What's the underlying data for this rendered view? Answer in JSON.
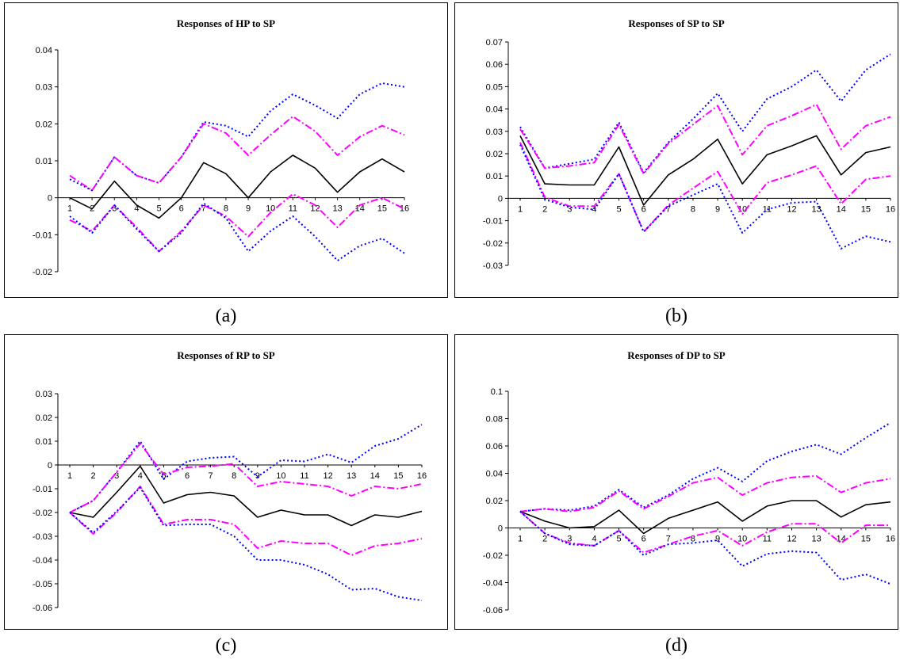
{
  "colors": {
    "irf": "#000000",
    "band_inner": "#ff00ff",
    "band_outer": "#0000ff",
    "axis": "#000000",
    "frame": "#000000"
  },
  "chart_data": [
    {
      "type": "line",
      "title": "Responses of HP to SP",
      "caption": "(a)",
      "x": [
        1,
        2,
        3,
        4,
        5,
        6,
        7,
        8,
        9,
        10,
        11,
        12,
        13,
        14,
        15,
        16
      ],
      "ylim": [
        -0.02,
        0.04
      ],
      "yticks": [
        "0.04",
        "0.03",
        "0.02",
        "0.01",
        "0",
        "-0.01",
        "-0.02"
      ],
      "ytick_values": [
        0.04,
        0.03,
        0.02,
        0.01,
        0,
        -0.01,
        -0.02
      ],
      "grid": false,
      "legend": "none",
      "series": [
        {
          "role": "outer_upper",
          "values": [
            0.005,
            0.002,
            0.011,
            0.006,
            0.004,
            0.011,
            0.0205,
            0.0195,
            0.0165,
            0.0235,
            0.028,
            0.025,
            0.0215,
            0.028,
            0.031,
            0.03
          ]
        },
        {
          "role": "inner_upper",
          "values": [
            0.006,
            0.002,
            0.011,
            0.006,
            0.004,
            0.011,
            0.02,
            0.0175,
            0.0115,
            0.017,
            0.022,
            0.018,
            0.0115,
            0.0165,
            0.0195,
            0.017
          ]
        },
        {
          "role": "irf",
          "values": [
            0.0,
            -0.003,
            0.0045,
            -0.002,
            -0.0055,
            0.0,
            0.0095,
            0.0065,
            0.0,
            0.007,
            0.0115,
            0.008,
            0.0015,
            0.007,
            0.0105,
            0.007
          ]
        },
        {
          "role": "inner_lower",
          "values": [
            -0.006,
            -0.009,
            -0.002,
            -0.008,
            -0.0145,
            -0.009,
            -0.002,
            -0.005,
            -0.0105,
            -0.004,
            0.001,
            -0.002,
            -0.008,
            -0.002,
            0.0,
            -0.003
          ]
        },
        {
          "role": "outer_lower",
          "values": [
            -0.005,
            -0.0095,
            -0.002,
            -0.0085,
            -0.0145,
            -0.0095,
            -0.0015,
            -0.0055,
            -0.0145,
            -0.009,
            -0.005,
            -0.0105,
            -0.017,
            -0.013,
            -0.011,
            -0.015
          ]
        }
      ]
    },
    {
      "type": "line",
      "title": "Responses of SP to SP",
      "caption": "(b)",
      "x": [
        1,
        2,
        3,
        4,
        5,
        6,
        7,
        8,
        9,
        10,
        11,
        12,
        13,
        14,
        15,
        16
      ],
      "ylim": [
        -0.03,
        0.07
      ],
      "yticks": [
        "0.07",
        "0.06",
        "0.05",
        "0.04",
        "0.03",
        "0.02",
        "0.01",
        "0",
        "-0.01",
        "-0.02",
        "-0.03"
      ],
      "ytick_values": [
        0.07,
        0.06,
        0.05,
        0.04,
        0.03,
        0.02,
        0.01,
        0,
        -0.01,
        -0.02,
        -0.03
      ],
      "grid": false,
      "legend": "none",
      "series": [
        {
          "role": "outer_upper",
          "values": [
            0.032,
            0.0135,
            0.0155,
            0.0175,
            0.034,
            0.0115,
            0.025,
            0.0355,
            0.047,
            0.03,
            0.0445,
            0.05,
            0.0575,
            0.0435,
            0.0575,
            0.0645
          ]
        },
        {
          "role": "inner_upper",
          "values": [
            0.031,
            0.0135,
            0.0145,
            0.016,
            0.033,
            0.011,
            0.0245,
            0.033,
            0.0415,
            0.0195,
            0.0325,
            0.037,
            0.042,
            0.022,
            0.0325,
            0.0365
          ]
        },
        {
          "role": "irf",
          "values": [
            0.028,
            0.0065,
            0.006,
            0.006,
            0.023,
            -0.003,
            0.0105,
            0.0175,
            0.0265,
            0.0065,
            0.0195,
            0.0235,
            0.028,
            0.0105,
            0.0205,
            0.023
          ]
        },
        {
          "role": "inner_lower",
          "values": [
            0.025,
            0.0005,
            -0.0035,
            -0.0035,
            0.011,
            -0.015,
            -0.003,
            0.0045,
            0.012,
            -0.007,
            0.007,
            0.0105,
            0.0145,
            -0.0025,
            0.0085,
            0.01
          ]
        },
        {
          "role": "outer_lower",
          "values": [
            0.024,
            -0.0005,
            -0.004,
            -0.005,
            0.011,
            -0.015,
            -0.0035,
            0.0015,
            0.0065,
            -0.0155,
            -0.005,
            -0.002,
            -0.0015,
            -0.0225,
            -0.017,
            -0.0195
          ]
        }
      ]
    },
    {
      "type": "line",
      "title": "Responses of RP to SP",
      "caption": "(c)",
      "x": [
        1,
        2,
        3,
        4,
        5,
        6,
        7,
        8,
        9,
        10,
        11,
        12,
        13,
        14,
        15,
        16
      ],
      "ylim": [
        -0.06,
        0.03
      ],
      "yticks": [
        "0.03",
        "0.02",
        "0.01",
        "0",
        "-0.01",
        "-0.02",
        "-0.03",
        "-0.04",
        "-0.05",
        "-0.06"
      ],
      "ytick_values": [
        0.03,
        0.02,
        0.01,
        0,
        -0.01,
        -0.02,
        -0.03,
        -0.04,
        -0.05,
        -0.06
      ],
      "grid": false,
      "legend": "none",
      "series": [
        {
          "role": "outer_upper",
          "values": [
            -0.02,
            -0.015,
            -0.003,
            0.01,
            -0.006,
            0.0015,
            0.003,
            0.0035,
            -0.005,
            0.002,
            0.0015,
            0.0045,
            0.001,
            0.008,
            0.011,
            0.017
          ]
        },
        {
          "role": "inner_upper",
          "values": [
            -0.02,
            -0.015,
            -0.003,
            0.009,
            -0.004,
            -0.001,
            -0.0005,
            0.0005,
            -0.009,
            -0.007,
            -0.008,
            -0.009,
            -0.013,
            -0.009,
            -0.01,
            -0.008
          ]
        },
        {
          "role": "irf",
          "values": [
            -0.02,
            -0.022,
            -0.0115,
            -0.0005,
            -0.016,
            -0.0125,
            -0.0115,
            -0.013,
            -0.022,
            -0.019,
            -0.021,
            -0.021,
            -0.0255,
            -0.021,
            -0.022,
            -0.0195
          ]
        },
        {
          "role": "inner_lower",
          "values": [
            -0.02,
            -0.029,
            -0.02,
            -0.009,
            -0.025,
            -0.023,
            -0.023,
            -0.025,
            -0.035,
            -0.032,
            -0.033,
            -0.033,
            -0.038,
            -0.034,
            -0.033,
            -0.031
          ]
        },
        {
          "role": "outer_lower",
          "values": [
            -0.02,
            -0.0285,
            -0.0195,
            -0.0095,
            -0.0255,
            -0.025,
            -0.025,
            -0.03,
            -0.04,
            -0.04,
            -0.042,
            -0.046,
            -0.0525,
            -0.052,
            -0.0555,
            -0.057
          ]
        }
      ]
    },
    {
      "type": "line",
      "title": "Responses of DP to SP",
      "caption": "(d)",
      "x": [
        1,
        2,
        3,
        4,
        5,
        6,
        7,
        8,
        9,
        10,
        11,
        12,
        13,
        14,
        15,
        16
      ],
      "ylim": [
        -0.06,
        0.1
      ],
      "yticks": [
        "0.1",
        "0.08",
        "0.06",
        "0.04",
        "0.02",
        "0",
        "-0.02",
        "-0.04",
        "-0.06"
      ],
      "ytick_values": [
        0.1,
        0.08,
        0.06,
        0.04,
        0.02,
        0,
        -0.02,
        -0.04,
        -0.06
      ],
      "grid": false,
      "legend": "none",
      "series": [
        {
          "role": "outer_upper",
          "values": [
            0.012,
            0.014,
            0.013,
            0.016,
            0.028,
            0.015,
            0.024,
            0.036,
            0.044,
            0.034,
            0.049,
            0.056,
            0.061,
            0.054,
            0.066,
            0.077
          ]
        },
        {
          "role": "inner_upper",
          "values": [
            0.012,
            0.014,
            0.012,
            0.015,
            0.027,
            0.014,
            0.023,
            0.033,
            0.037,
            0.024,
            0.033,
            0.037,
            0.038,
            0.026,
            0.033,
            0.036
          ]
        },
        {
          "role": "irf",
          "values": [
            0.012,
            0.005,
            0.0,
            0.001,
            0.013,
            -0.004,
            0.007,
            0.013,
            0.019,
            0.005,
            0.016,
            0.02,
            0.02,
            0.008,
            0.017,
            0.019
          ]
        },
        {
          "role": "inner_lower",
          "values": [
            0.012,
            -0.004,
            -0.011,
            -0.013,
            -0.002,
            -0.018,
            -0.012,
            -0.006,
            -0.002,
            -0.013,
            -0.003,
            0.003,
            0.003,
            -0.011,
            0.002,
            0.002
          ]
        },
        {
          "role": "outer_lower",
          "values": [
            0.012,
            -0.004,
            -0.012,
            -0.013,
            -0.002,
            -0.02,
            -0.012,
            -0.011,
            -0.009,
            -0.028,
            -0.019,
            -0.017,
            -0.018,
            -0.038,
            -0.034,
            -0.041
          ]
        }
      ]
    }
  ]
}
